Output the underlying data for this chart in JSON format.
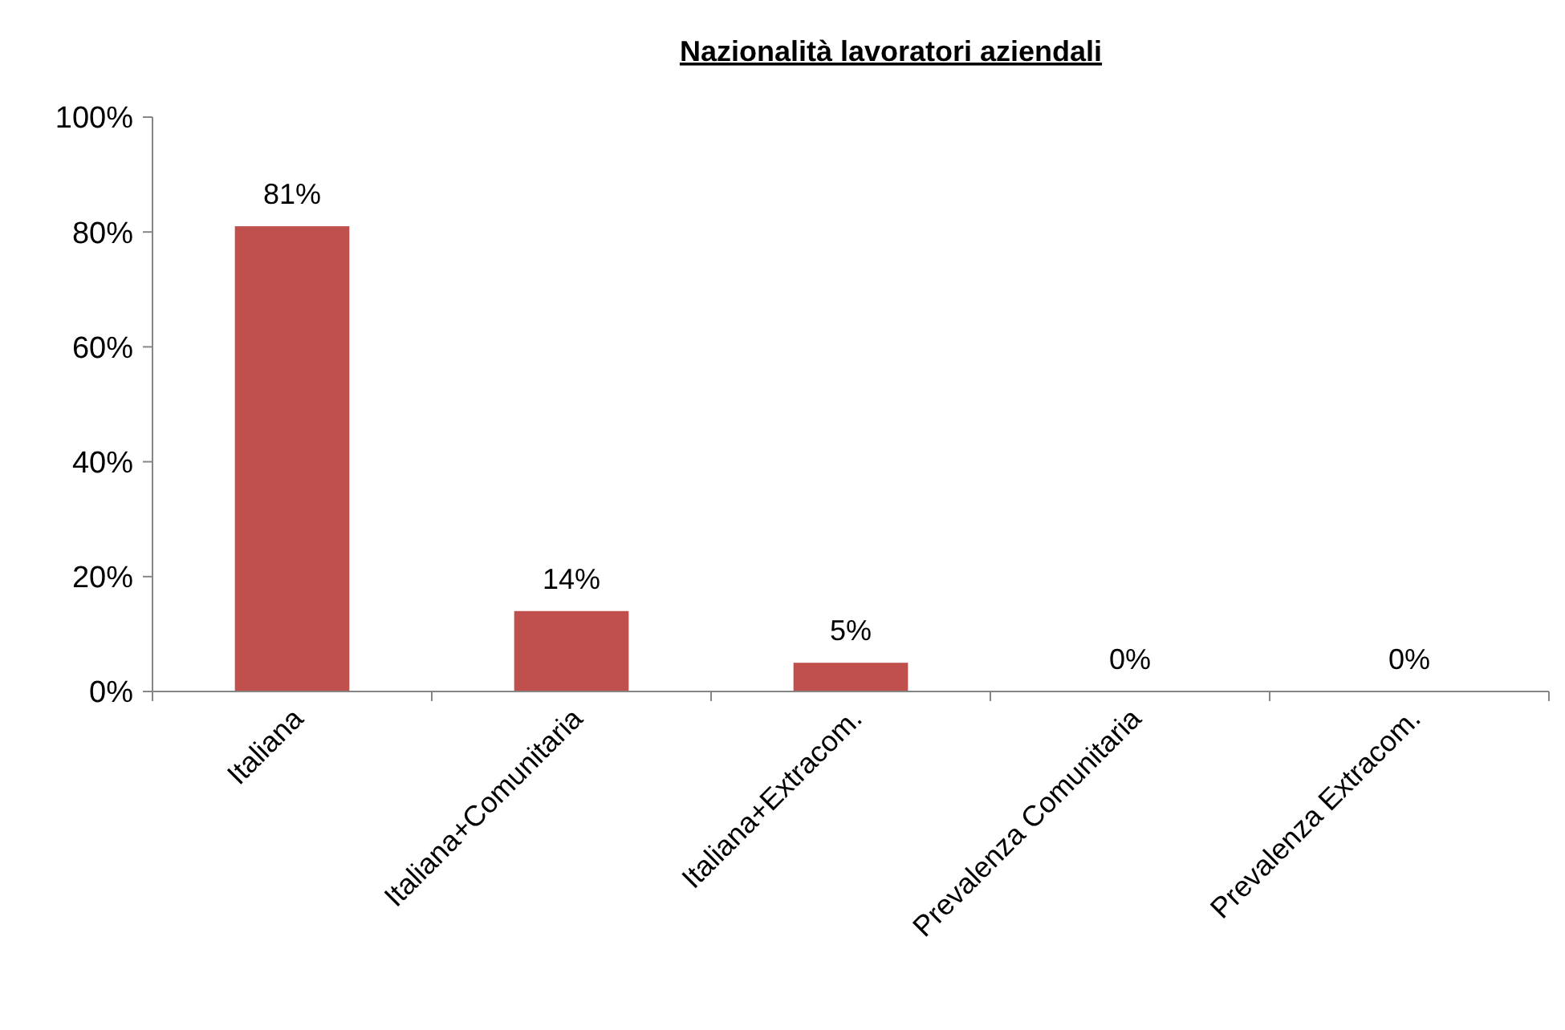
{
  "chart_data": {
    "type": "bar",
    "title": "Nazionalità lavoratori aziendali",
    "categories": [
      "Italiana",
      "Italiana+Comunitaria",
      "Italiana+Extracom.",
      "Prevalenza Comunitaria",
      "Prevalenza Extracom."
    ],
    "values": [
      81,
      14,
      5,
      0,
      0
    ],
    "value_labels": [
      "81%",
      "14%",
      "5%",
      "0%",
      "0%"
    ],
    "color": "#c0504d",
    "ylim": [
      0,
      100
    ],
    "yticks": [
      {
        "value": 0,
        "label": "0%"
      },
      {
        "value": 20,
        "label": "20%"
      },
      {
        "value": 40,
        "label": "40%"
      },
      {
        "value": 60,
        "label": "60%"
      },
      {
        "value": 80,
        "label": "80%"
      },
      {
        "value": 100,
        "label": "100%"
      }
    ],
    "grid": false
  }
}
